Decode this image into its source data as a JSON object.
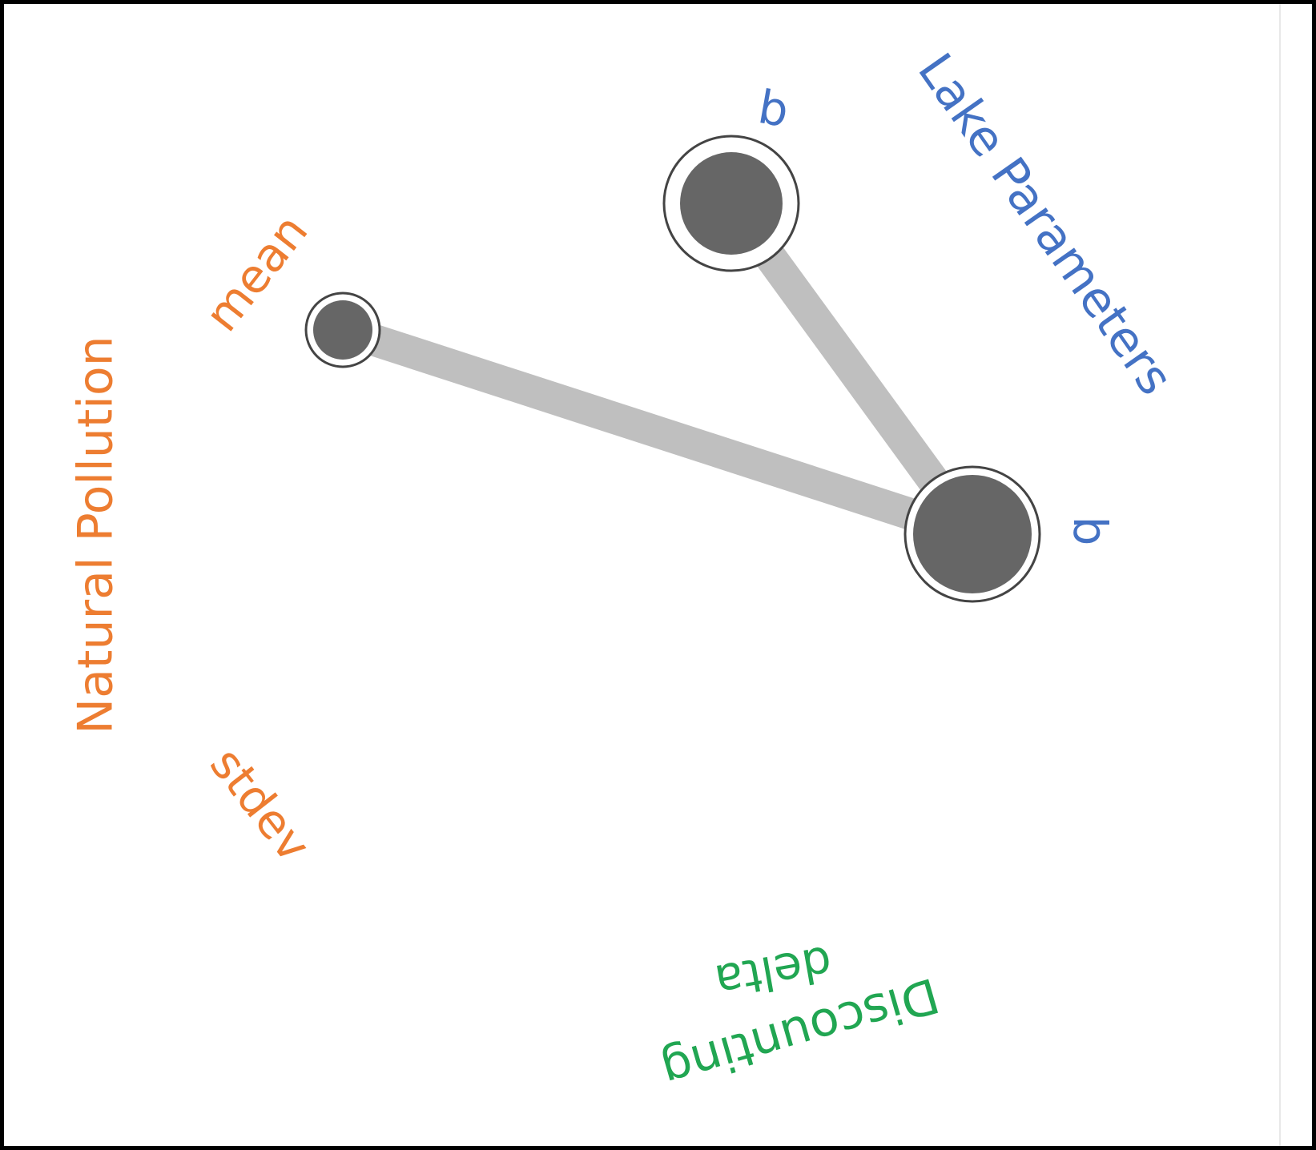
{
  "diagram": {
    "groups": [
      {
        "id": "lake",
        "label": "Lake Parameters",
        "color": "#4472c4",
        "variables": [
          {
            "id": "q",
            "label": "q"
          },
          {
            "id": "b",
            "label": "b"
          }
        ]
      },
      {
        "id": "pollution",
        "label": "Natural Pollution",
        "color": "#ed7d31",
        "variables": [
          {
            "id": "mean",
            "label": "mean"
          },
          {
            "id": "stdev",
            "label": "stdev"
          }
        ]
      },
      {
        "id": "discounting",
        "label": "Discounting",
        "color": "#21a652",
        "variables": [
          {
            "id": "delta",
            "label": "delta"
          }
        ]
      }
    ],
    "edges": [
      {
        "from": "mean",
        "to": "b"
      },
      {
        "from": "q",
        "to": "b"
      }
    ],
    "node_color": "#666666",
    "edge_color": "#bfbfbf"
  }
}
